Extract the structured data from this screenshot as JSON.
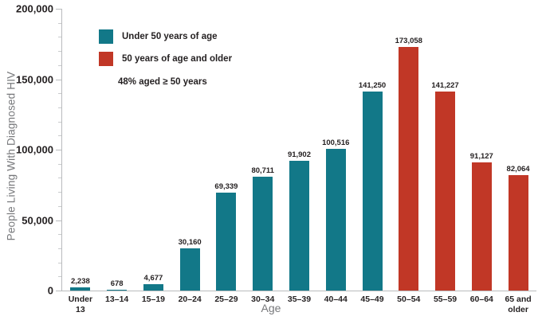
{
  "chart_data": {
    "type": "bar",
    "title": "",
    "xlabel": "Age",
    "ylabel": "People Living With Diagnosed HIV",
    "ylim": [
      0,
      200000
    ],
    "grid": false,
    "legend_position": "top-left-inside",
    "yticks": [
      {
        "value": 0,
        "label": "0"
      },
      {
        "value": 50000,
        "label": "50,000"
      },
      {
        "value": 100000,
        "label": "100,000"
      },
      {
        "value": 150000,
        "label": "150,000"
      },
      {
        "value": 200000,
        "label": "200,000"
      }
    ],
    "ytick_minor_step": 10000,
    "categories": [
      "Under 13",
      "13–14",
      "15–19",
      "20–24",
      "25–29",
      "30–34",
      "35–39",
      "40–44",
      "45–49",
      "50–54",
      "55–59",
      "60–64",
      "65 and older"
    ],
    "categories_display": [
      "Under\n13",
      "13–14",
      "15–19",
      "20–24",
      "25–29",
      "30–34",
      "35–39",
      "40–44",
      "45–49",
      "50–54",
      "55–59",
      "60–64",
      "65 and\nolder"
    ],
    "values": [
      2238,
      678,
      4677,
      30160,
      69339,
      80711,
      91902,
      100516,
      141250,
      173058,
      141227,
      91127,
      82064
    ],
    "values_display": [
      "2,238",
      "678",
      "4,677",
      "30,160",
      "69,339",
      "80,711",
      "91,902",
      "100,516",
      "141,250",
      "173,058",
      "141,227",
      "91,127",
      "82,064"
    ],
    "group_index": [
      0,
      0,
      0,
      0,
      0,
      0,
      0,
      0,
      0,
      1,
      1,
      1,
      1
    ],
    "legend": [
      {
        "label": "Under 50 years of age",
        "color": "#127888"
      },
      {
        "label": "50 years of age and older",
        "color": "#C13726"
      }
    ],
    "annotation": "48% aged ≥ 50 years"
  },
  "colors": {
    "axis": "#B9BBBD",
    "text": "#231F20",
    "muted_label": "#77787B",
    "background": "#FFFFFF"
  }
}
